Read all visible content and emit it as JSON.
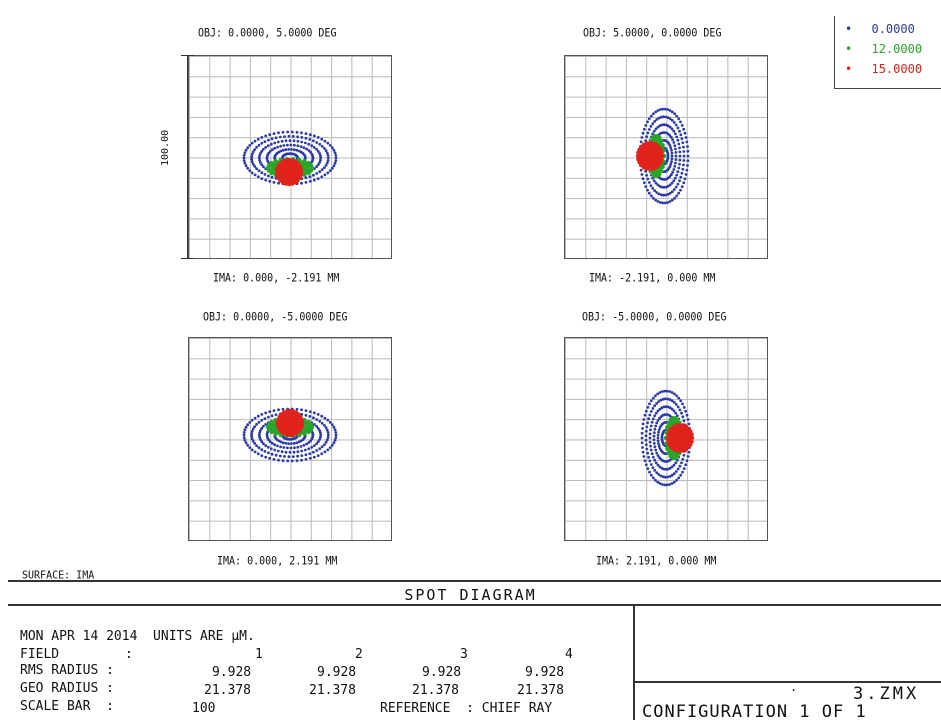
{
  "legend": [
    {
      "label": "0.0000",
      "color": "#2b3aa8"
    },
    {
      "label": "12.0000",
      "color": "#2aa52a"
    },
    {
      "label": "15.0000",
      "color": "#e0231c"
    }
  ],
  "plots": [
    {
      "obj": "OBJ: 0.0000, 5.0000 DEG",
      "ima": "IMA: 0.000, -2.191 MM"
    },
    {
      "obj": "OBJ: 5.0000, 0.0000 DEG",
      "ima": "IMA: -2.191, 0.000 MM"
    },
    {
      "obj": "OBJ: 0.0000, -5.0000 DEG",
      "ima": "IMA: 0.000, 2.191 MM"
    },
    {
      "obj": "OBJ: -5.0000, 0.0000 DEG",
      "ima": "IMA: 2.191, 0.000 MM"
    }
  ],
  "scale_label": "100.00",
  "surface": "SURFACE: IMA",
  "title": "SPOT DIAGRAM",
  "info": {
    "date_line": "MON APR 14 2014  UNITS ARE µM.",
    "field_label": "FIELD",
    "field_values": [
      "1",
      "2",
      "3",
      "4"
    ],
    "rms_label": "RMS RADIUS :",
    "rms_values": [
      "9.928",
      "9.928",
      "9.928",
      "9.928"
    ],
    "geo_label": "GEO RADIUS :",
    "geo_values": [
      "21.378",
      "21.378",
      "21.378",
      "21.378"
    ],
    "scale_bar_label": "SCALE BAR  :",
    "scale_bar_value": "100",
    "reference_text": "REFERENCE  : CHIEF RAY"
  },
  "file_name": "3.ZMX",
  "configuration": "CONFIGURATION 1 OF 1"
}
